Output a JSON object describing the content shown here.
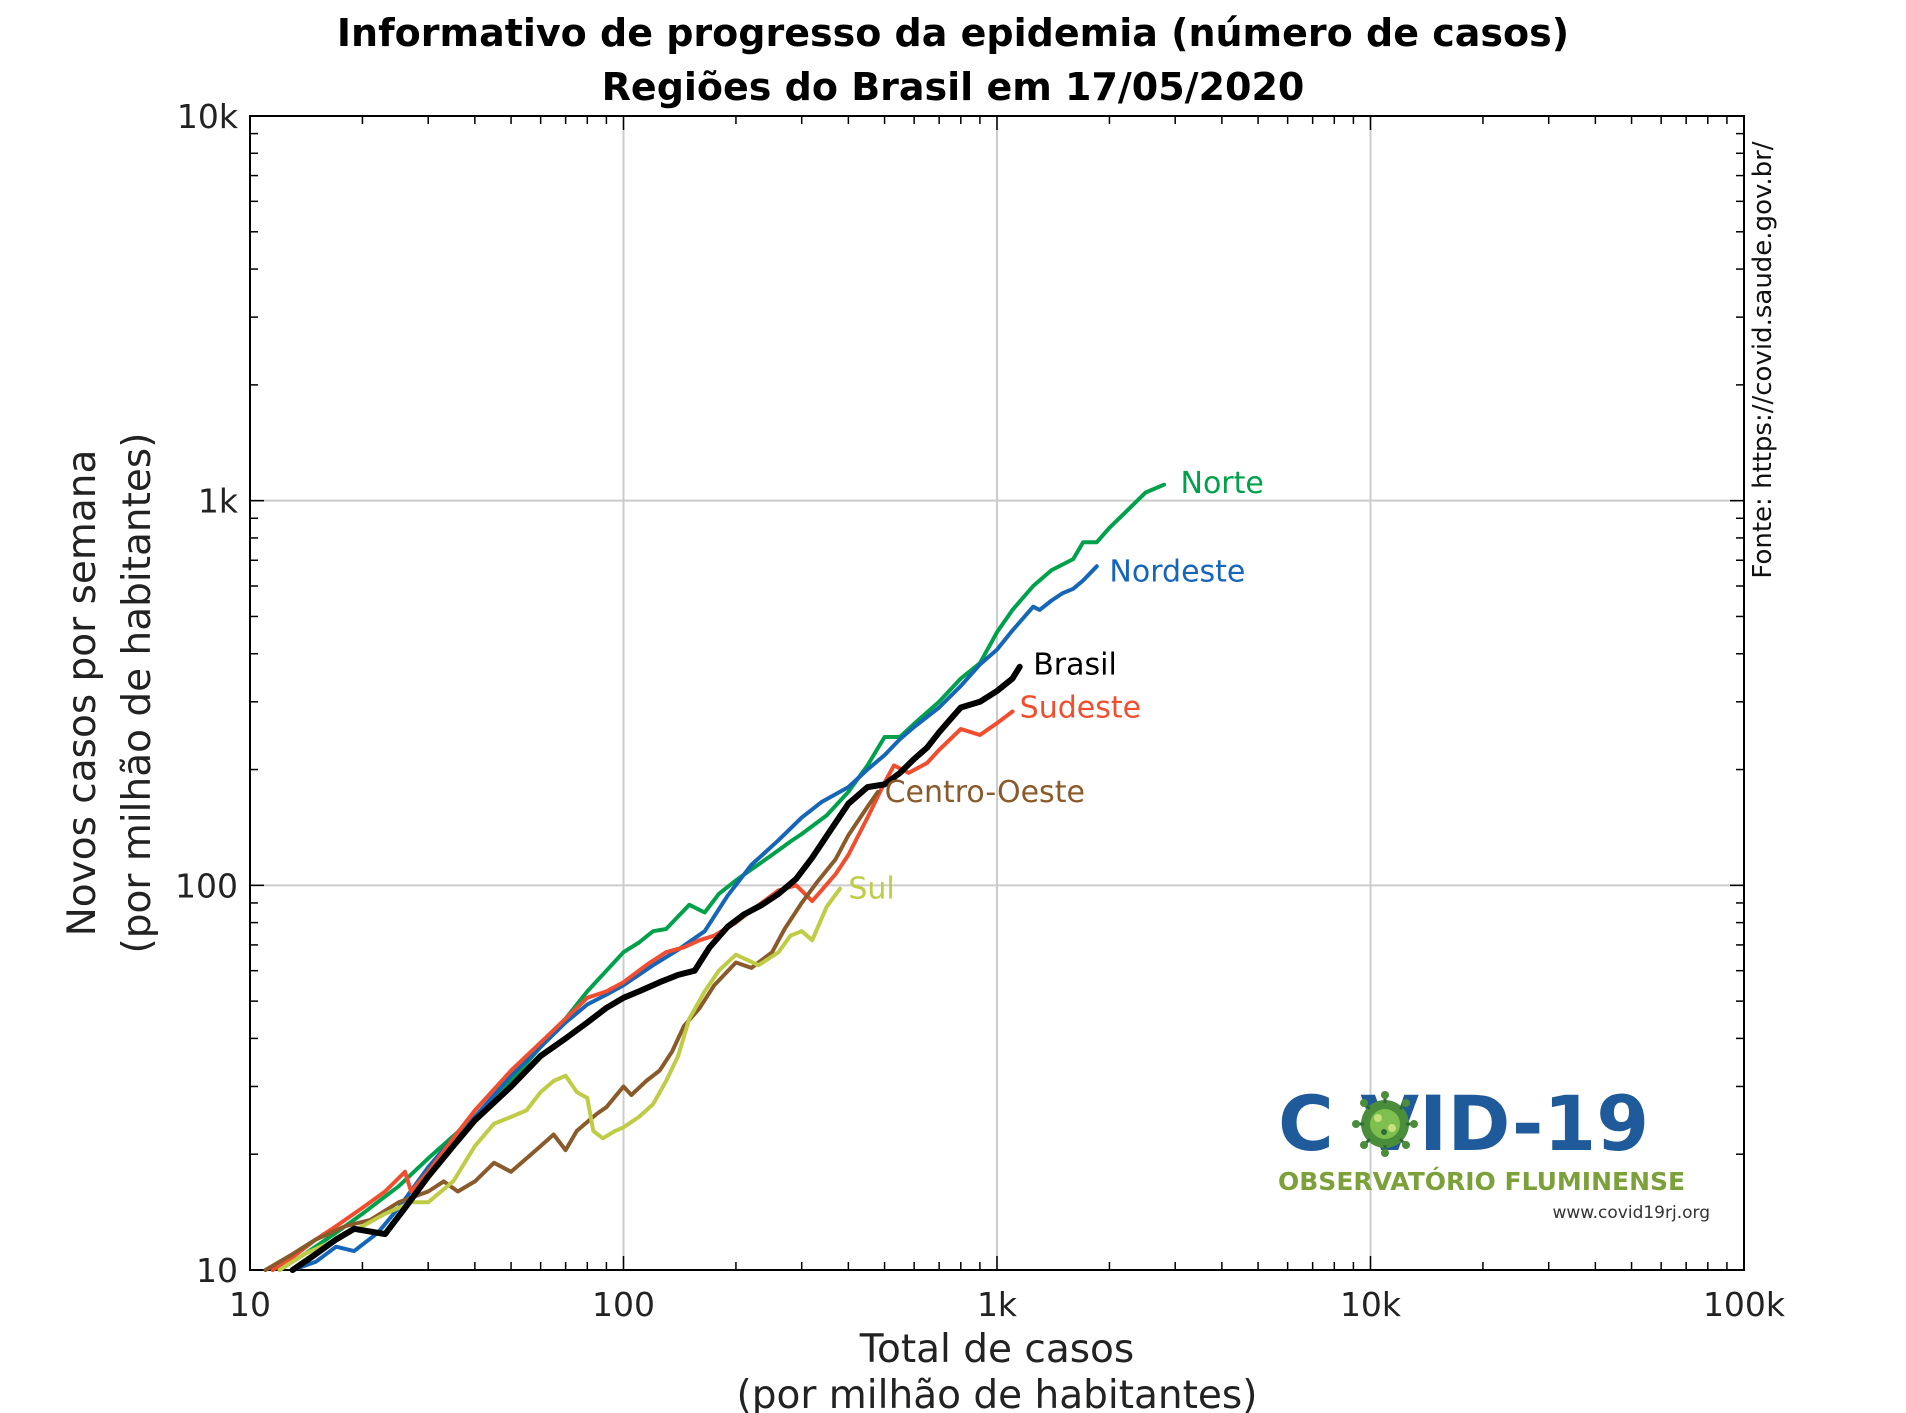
{
  "chart_data": {
    "type": "line",
    "title_line1": "Informativo de progresso da epidemia (número de casos)",
    "title_line2": "Regiões do Brasil em 17/05/2020",
    "xlabel_line1": "Total de casos",
    "xlabel_line2": "(por milhão de habitantes)",
    "ylabel_line1": "Novos casos por semana",
    "ylabel_line2": "(por milhão de habitantes)",
    "x_scale": "log",
    "y_scale": "log",
    "xlim": [
      10,
      100000
    ],
    "ylim": [
      10,
      10000
    ],
    "x_ticks": [
      {
        "value": 10,
        "label": "10"
      },
      {
        "value": 100,
        "label": "100"
      },
      {
        "value": 1000,
        "label": "1k"
      },
      {
        "value": 10000,
        "label": "10k"
      },
      {
        "value": 100000,
        "label": "100k"
      }
    ],
    "y_ticks": [
      {
        "value": 10,
        "label": "10"
      },
      {
        "value": 100,
        "label": "100"
      },
      {
        "value": 1000,
        "label": "1k"
      },
      {
        "value": 10000,
        "label": "10k"
      }
    ],
    "grid": true,
    "legend": "inline labels at line ends",
    "source_note": "Fonte: https://covid.saude.gov.br/",
    "series": [
      {
        "name": "Norte",
        "color": "#00a14b",
        "width": 4,
        "points": [
          [
            12,
            10
          ],
          [
            14,
            11
          ],
          [
            17,
            12.5
          ],
          [
            20,
            14
          ],
          [
            25,
            16.5
          ],
          [
            30,
            19.5
          ],
          [
            40,
            25
          ],
          [
            50,
            31
          ],
          [
            60,
            38
          ],
          [
            70,
            45
          ],
          [
            80,
            53
          ],
          [
            90,
            60
          ],
          [
            100,
            67
          ],
          [
            110,
            71
          ],
          [
            120,
            76
          ],
          [
            130,
            77
          ],
          [
            140,
            83
          ],
          [
            150,
            89
          ],
          [
            165,
            85
          ],
          [
            180,
            95
          ],
          [
            200,
            103
          ],
          [
            220,
            110
          ],
          [
            250,
            120
          ],
          [
            280,
            130
          ],
          [
            300,
            136
          ],
          [
            350,
            152
          ],
          [
            400,
            175
          ],
          [
            450,
            205
          ],
          [
            500,
            243
          ],
          [
            550,
            243
          ],
          [
            600,
            263
          ],
          [
            700,
            300
          ],
          [
            800,
            345
          ],
          [
            900,
            378
          ],
          [
            1000,
            455
          ],
          [
            1100,
            520
          ],
          [
            1250,
            600
          ],
          [
            1400,
            660
          ],
          [
            1600,
            705
          ],
          [
            1700,
            780
          ],
          [
            1850,
            780
          ],
          [
            2000,
            850
          ],
          [
            2200,
            930
          ],
          [
            2500,
            1050
          ],
          [
            2800,
            1100
          ]
        ]
      },
      {
        "name": "Nordeste",
        "color": "#1565b8",
        "width": 4,
        "points": [
          [
            13,
            10
          ],
          [
            15,
            10.5
          ],
          [
            17,
            11.5
          ],
          [
            19,
            11.2
          ],
          [
            22,
            12.5
          ],
          [
            25,
            14.5
          ],
          [
            30,
            18.5
          ],
          [
            35,
            22
          ],
          [
            40,
            25
          ],
          [
            50,
            32
          ],
          [
            60,
            38
          ],
          [
            70,
            44
          ],
          [
            80,
            49
          ],
          [
            90,
            52
          ],
          [
            100,
            55
          ],
          [
            120,
            62
          ],
          [
            140,
            68
          ],
          [
            165,
            76
          ],
          [
            190,
            94
          ],
          [
            220,
            113
          ],
          [
            260,
            131
          ],
          [
            300,
            150
          ],
          [
            340,
            165
          ],
          [
            400,
            180
          ],
          [
            450,
            200
          ],
          [
            500,
            218
          ],
          [
            550,
            240
          ],
          [
            600,
            258
          ],
          [
            700,
            290
          ],
          [
            800,
            330
          ],
          [
            900,
            375
          ],
          [
            1000,
            410
          ],
          [
            1100,
            460
          ],
          [
            1250,
            530
          ],
          [
            1300,
            520
          ],
          [
            1400,
            550
          ],
          [
            1500,
            575
          ],
          [
            1600,
            590
          ],
          [
            1700,
            620
          ],
          [
            1850,
            675
          ]
        ]
      },
      {
        "name": "Sudeste",
        "color": "#f04e2e",
        "width": 4,
        "points": [
          [
            11.5,
            10
          ],
          [
            13,
            10.8
          ],
          [
            15,
            12
          ],
          [
            17,
            13
          ],
          [
            20,
            14.5
          ],
          [
            23,
            16
          ],
          [
            26,
            18
          ],
          [
            27,
            16
          ],
          [
            30,
            18
          ],
          [
            35,
            22
          ],
          [
            40,
            26
          ],
          [
            50,
            33
          ],
          [
            60,
            39
          ],
          [
            70,
            45
          ],
          [
            80,
            51
          ],
          [
            90,
            53
          ],
          [
            100,
            56
          ],
          [
            115,
            62
          ],
          [
            130,
            67
          ],
          [
            145,
            69
          ],
          [
            160,
            72
          ],
          [
            175,
            74
          ],
          [
            200,
            80
          ],
          [
            220,
            86
          ],
          [
            260,
            97
          ],
          [
            290,
            100
          ],
          [
            320,
            91
          ],
          [
            370,
            107
          ],
          [
            400,
            120
          ],
          [
            450,
            150
          ],
          [
            500,
            185
          ],
          [
            530,
            205
          ],
          [
            580,
            196
          ],
          [
            650,
            208
          ],
          [
            700,
            225
          ],
          [
            800,
            255
          ],
          [
            900,
            246
          ],
          [
            1000,
            264
          ],
          [
            1100,
            283
          ]
        ]
      },
      {
        "name": "Centro-Oeste",
        "color": "#8a5a2b",
        "width": 4,
        "points": [
          [
            11,
            10
          ],
          [
            13,
            11
          ],
          [
            15,
            12
          ],
          [
            18,
            13
          ],
          [
            21,
            13.5
          ],
          [
            25,
            15
          ],
          [
            30,
            16
          ],
          [
            33,
            17
          ],
          [
            36,
            16
          ],
          [
            40,
            17
          ],
          [
            45,
            19
          ],
          [
            50,
            18
          ],
          [
            55,
            19.5
          ],
          [
            60,
            21
          ],
          [
            65,
            22.5
          ],
          [
            70,
            20.5
          ],
          [
            75,
            23
          ],
          [
            85,
            25.5
          ],
          [
            90,
            26.5
          ],
          [
            100,
            30
          ],
          [
            105,
            28.5
          ],
          [
            115,
            31
          ],
          [
            125,
            33
          ],
          [
            135,
            37
          ],
          [
            145,
            43
          ],
          [
            160,
            48
          ],
          [
            175,
            55
          ],
          [
            200,
            63
          ],
          [
            220,
            61
          ],
          [
            250,
            67
          ],
          [
            270,
            77
          ],
          [
            300,
            90
          ],
          [
            330,
            102
          ],
          [
            370,
            117
          ],
          [
            400,
            135
          ],
          [
            450,
            160
          ],
          [
            480,
            175
          ]
        ]
      },
      {
        "name": "Sul",
        "color": "#bfcc45",
        "width": 4,
        "points": [
          [
            12,
            10
          ],
          [
            14,
            11
          ],
          [
            17,
            12
          ],
          [
            20,
            13
          ],
          [
            23,
            14
          ],
          [
            27,
            15
          ],
          [
            30,
            15
          ],
          [
            35,
            17
          ],
          [
            40,
            21
          ],
          [
            45,
            24
          ],
          [
            50,
            25
          ],
          [
            55,
            26
          ],
          [
            60,
            29
          ],
          [
            65,
            31
          ],
          [
            70,
            32
          ],
          [
            75,
            29
          ],
          [
            80,
            28
          ],
          [
            83,
            23
          ],
          [
            88,
            22
          ],
          [
            95,
            23
          ],
          [
            100,
            23.5
          ],
          [
            110,
            25
          ],
          [
            120,
            27
          ],
          [
            130,
            31
          ],
          [
            140,
            36
          ],
          [
            150,
            45
          ],
          [
            165,
            53
          ],
          [
            180,
            60
          ],
          [
            200,
            66
          ],
          [
            230,
            62
          ],
          [
            260,
            67
          ],
          [
            280,
            74
          ],
          [
            300,
            76
          ],
          [
            320,
            72
          ],
          [
            350,
            88
          ],
          [
            380,
            98
          ]
        ]
      },
      {
        "name": "Brasil",
        "color": "#000000",
        "width": 6,
        "points": [
          [
            13,
            10
          ],
          [
            15,
            11
          ],
          [
            17,
            12
          ],
          [
            19,
            12.8
          ],
          [
            23,
            12.4
          ],
          [
            26,
            14.5
          ],
          [
            30,
            17.5
          ],
          [
            35,
            21
          ],
          [
            40,
            24.5
          ],
          [
            50,
            30
          ],
          [
            60,
            36
          ],
          [
            70,
            40
          ],
          [
            80,
            44
          ],
          [
            90,
            48
          ],
          [
            100,
            51
          ],
          [
            110,
            53
          ],
          [
            125,
            56
          ],
          [
            140,
            58.5
          ],
          [
            155,
            60
          ],
          [
            170,
            69
          ],
          [
            190,
            78
          ],
          [
            210,
            84
          ],
          [
            235,
            89
          ],
          [
            260,
            95
          ],
          [
            290,
            104
          ],
          [
            320,
            118
          ],
          [
            360,
            140
          ],
          [
            400,
            163
          ],
          [
            450,
            180
          ],
          [
            500,
            183
          ],
          [
            550,
            196
          ],
          [
            600,
            213
          ],
          [
            650,
            228
          ],
          [
            700,
            250
          ],
          [
            750,
            270
          ],
          [
            800,
            290
          ],
          [
            900,
            300
          ],
          [
            1000,
            320
          ],
          [
            1100,
            345
          ],
          [
            1150,
            370
          ]
        ]
      }
    ],
    "series_labels": [
      {
        "name": "Norte",
        "color": "#00a14b",
        "x": 3100,
        "y": 1110
      },
      {
        "name": "Nordeste",
        "color": "#1565b8",
        "x": 2000,
        "y": 655
      },
      {
        "name": "Brasil",
        "color": "#000000",
        "x": 1250,
        "y": 375
      },
      {
        "name": "Sudeste",
        "color": "#f04e2e",
        "x": 1150,
        "y": 290
      },
      {
        "name": "Centro-Oeste",
        "color": "#8a5a2b",
        "x": 500,
        "y": 175
      },
      {
        "name": "Sul",
        "color": "#bfcc45",
        "x": 400,
        "y": 98
      }
    ]
  },
  "logo": {
    "title": "C VID-19",
    "subtitle": "OBSERVATÓRIO FLUMINENSE",
    "url": "www.covid19rj.org"
  }
}
